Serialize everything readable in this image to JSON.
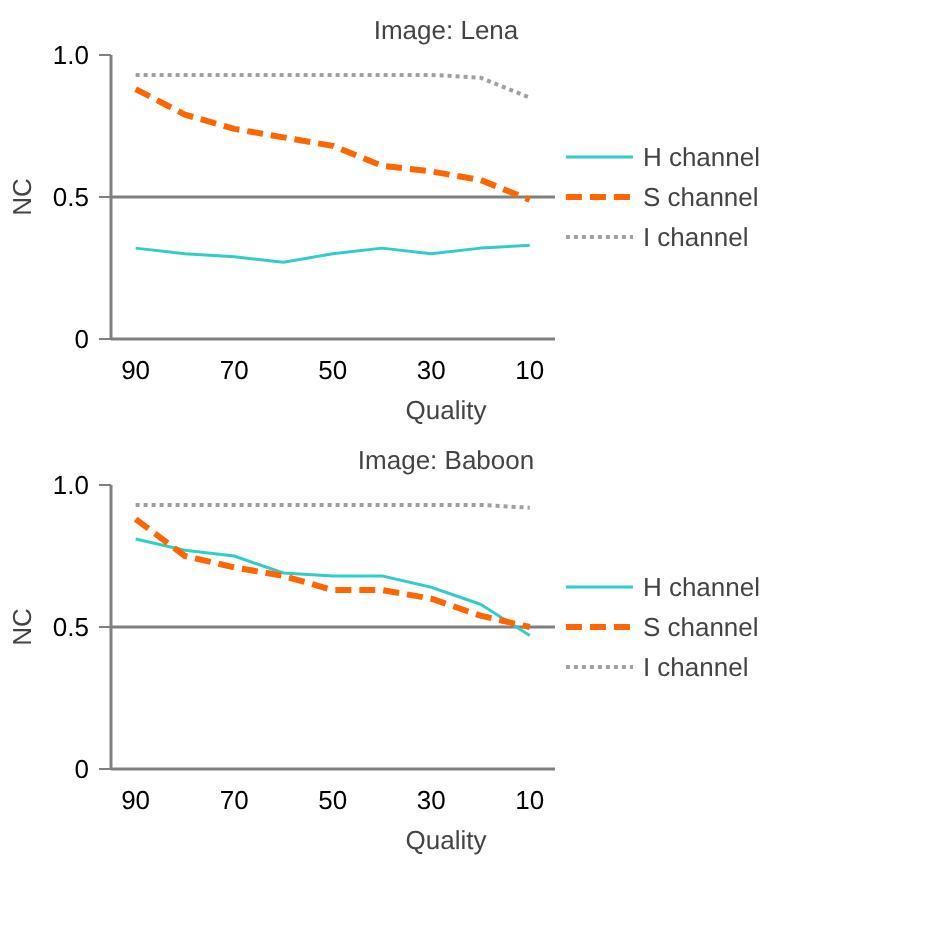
{
  "chart_data": [
    {
      "type": "line",
      "title": "Image: Lena",
      "xlabel": "Quality",
      "ylabel": "NC",
      "categories": [
        "90",
        null,
        "70",
        null,
        "50",
        null,
        "30",
        null,
        "10"
      ],
      "ylim": [
        0,
        1.0
      ],
      "yticks": [
        0,
        0.5,
        {
          "value": 1.0,
          "label": "1.0"
        }
      ],
      "grid": "y",
      "legend": "right",
      "series": [
        {
          "name": "H channel",
          "color": "#33cccc",
          "line_style": "solid",
          "values": [
            0.32,
            0.3,
            0.29,
            0.27,
            0.3,
            0.32,
            0.3,
            0.32,
            0.33
          ]
        },
        {
          "name": "S channel",
          "color": "#ff6600",
          "line_style": "dashed",
          "values": [
            0.88,
            0.79,
            0.74,
            0.71,
            0.68,
            0.61,
            0.59,
            0.56,
            0.49
          ]
        },
        {
          "name": "I channel",
          "color": "#a0a0a0",
          "line_style": "dotted",
          "values": [
            0.93,
            0.93,
            0.93,
            0.93,
            0.93,
            0.93,
            0.93,
            0.92,
            0.85
          ]
        }
      ]
    },
    {
      "type": "line",
      "title": "Image: Baboon",
      "xlabel": "Quality",
      "ylabel": "NC",
      "categories": [
        "90",
        null,
        "70",
        null,
        "50",
        null,
        "30",
        null,
        "10"
      ],
      "ylim": [
        0,
        1.0
      ],
      "yticks": [
        0,
        0.5,
        {
          "value": 1.0,
          "label": "1.0"
        }
      ],
      "grid": "y",
      "legend": "right",
      "series": [
        {
          "name": "H channel",
          "color": "#33cccc",
          "line_style": "solid",
          "values": [
            0.81,
            0.77,
            0.75,
            0.69,
            0.68,
            0.68,
            0.64,
            0.58,
            0.47
          ]
        },
        {
          "name": "S channel",
          "color": "#ff6600",
          "line_style": "dashed",
          "values": [
            0.88,
            0.75,
            0.71,
            0.68,
            0.63,
            0.63,
            0.6,
            0.54,
            0.5
          ]
        },
        {
          "name": "I channel",
          "color": "#a0a0a0",
          "line_style": "dotted",
          "values": [
            0.93,
            0.93,
            0.93,
            0.93,
            0.93,
            0.93,
            0.93,
            0.93,
            0.92
          ]
        }
      ]
    }
  ]
}
